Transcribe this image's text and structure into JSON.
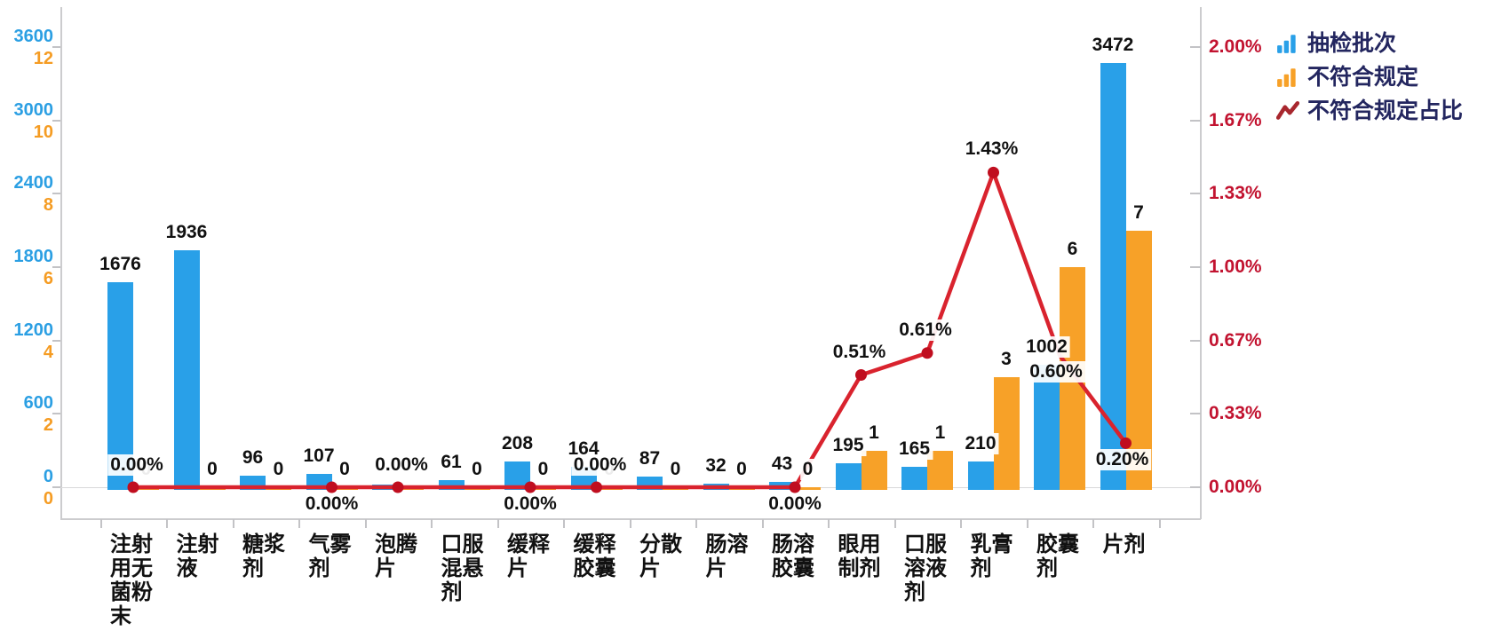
{
  "legend": {
    "items": [
      {
        "label": "抽检批次",
        "icon": "bar-chart-icon"
      },
      {
        "label": "不符合规定",
        "icon": "bar-chart-icon"
      },
      {
        "label": "不符合规定占比",
        "icon": "trend-line-icon"
      }
    ]
  },
  "colors": {
    "bar_blue": "#29A0E8",
    "bar_orange": "#F7A128",
    "line_red": "#D9232E",
    "marker_red": "#C00E1F",
    "axis_label_blue": "#2B9FE3",
    "axis_label_orange": "#F59C23",
    "axis_label_red": "#C21330",
    "legend_text": "#23265F",
    "legend_line_icon": "#A8272E",
    "label_black": "#111111",
    "axis_line": "#CCCCCE"
  },
  "chart_data": {
    "type": "combo-bar-line",
    "title": "",
    "grid": false,
    "legend_position": "top-right",
    "categories": [
      "注射用无菌粉末",
      "注射液",
      "糖浆剂",
      "气雾剂",
      "泡腾片",
      "口服混悬剂",
      "缓释片",
      "缓释胶囊",
      "分散片",
      "肠溶片",
      "肠溶胶囊",
      "眼用制剂",
      "口服溶液剂",
      "乳膏剂",
      "胶囊剂",
      "片剂"
    ],
    "series": [
      {
        "name": "抽检批次",
        "type": "bar",
        "axis": "left-blue",
        "values": [
          1676,
          1936,
          96,
          107,
          20,
          61,
          208,
          164,
          87,
          32,
          43,
          195,
          165,
          210,
          1002,
          3472
        ],
        "labels": [
          "1676",
          "1936",
          "96",
          "107",
          "",
          "61",
          "208",
          "164",
          "87",
          "32",
          "43",
          "195",
          "165",
          "210",
          "1002",
          "3472"
        ]
      },
      {
        "name": "不符合规定",
        "type": "bar",
        "axis": "left-orange",
        "values": [
          0,
          0,
          0,
          0,
          0,
          0,
          0,
          0,
          0,
          0,
          0,
          1,
          1,
          3,
          6,
          7
        ],
        "labels": [
          "0",
          "0",
          "0",
          "0",
          "",
          "0",
          "0",
          "0",
          "0",
          "0",
          "0",
          "1",
          "1",
          "3",
          "6",
          "7"
        ]
      },
      {
        "name": "不符合规定占比",
        "type": "line",
        "axis": "right",
        "values": [
          0,
          0,
          0,
          0,
          0,
          0,
          0,
          0,
          0,
          0,
          0,
          0.51,
          0.61,
          1.43,
          0.6,
          0.2
        ],
        "labels": [
          "0.00%",
          "",
          "",
          "0.00%",
          "0.00%",
          "",
          "0.00%",
          "0.00%",
          "",
          "",
          "0.00%",
          "0.51%",
          "0.61%",
          "1.43%",
          "0.60%",
          "0.20%"
        ],
        "label_pos": [
          "above-line",
          "",
          "",
          "below-line",
          "above-line",
          "",
          "below-line",
          "above-line",
          "",
          "",
          "below-line",
          "above-dot",
          "above-dot",
          "above-dot",
          "below-dot",
          "below-dot"
        ],
        "markers": [
          true,
          false,
          false,
          true,
          true,
          false,
          true,
          true,
          false,
          false,
          true,
          true,
          true,
          true,
          false,
          true
        ]
      }
    ],
    "left_axis": {
      "blue_ticks": [
        "3600",
        "3000",
        "2400",
        "1800",
        "1200",
        "600",
        "0"
      ],
      "orange_ticks": [
        "12",
        "10",
        "8",
        "6",
        "4",
        "2",
        "0"
      ],
      "blue_max": 3600,
      "orange_max": 12
    },
    "right_axis": {
      "ticks": [
        "2.00%",
        "1.67%",
        "1.33%",
        "1.00%",
        "0.67%",
        "0.33%",
        "0.00%"
      ],
      "max": 2
    }
  }
}
